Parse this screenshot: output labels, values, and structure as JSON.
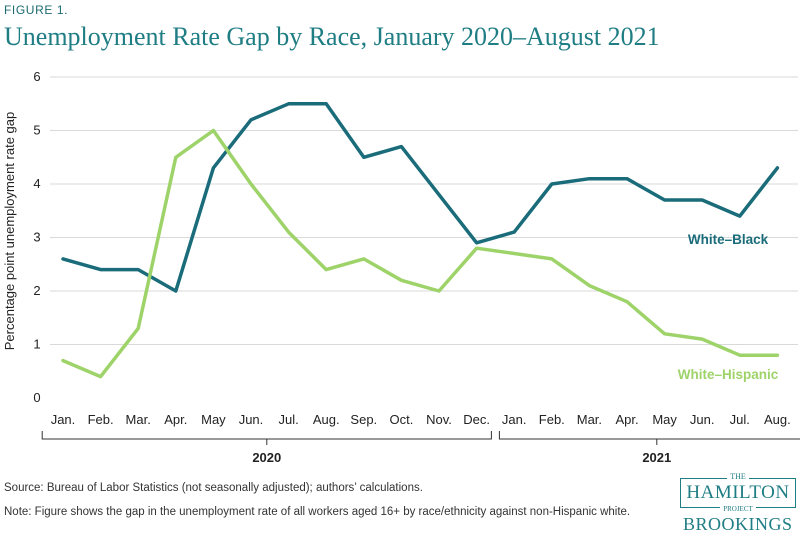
{
  "figure_label": "FIGURE 1.",
  "source_note": "Source: Bureau of Labor Statistics (not seasonally adjusted); authors’ calculations.",
  "definition_note": "Note: Figure shows the gap in the unemployment rate of all workers aged 16+ by race/ethnicity against non-Hispanic white.",
  "logo": {
    "the": "THE",
    "name": "HAMILTON",
    "project": "PROJECT",
    "org": "BROOKINGS"
  },
  "chart_data": {
    "type": "line",
    "title": "Unemployment Rate Gap by Race, January 2020–August 2021",
    "ylabel": "Percentage point unemployment rate gap",
    "ylim": [
      0,
      6
    ],
    "yticks": [
      0,
      1,
      2,
      3,
      4,
      5,
      6
    ],
    "grid": true,
    "categories": [
      "Jan.",
      "Feb.",
      "Mar.",
      "Apr.",
      "May",
      "Jun.",
      "Jul.",
      "Aug.",
      "Sep.",
      "Oct.",
      "Nov.",
      "Dec.",
      "Jan.",
      "Feb.",
      "Mar.",
      "Apr.",
      "May",
      "Jun.",
      "Jul.",
      "Aug."
    ],
    "year_groups": [
      {
        "label": "2020",
        "start": 0,
        "end": 11
      },
      {
        "label": "2021",
        "start": 12,
        "end": 19
      }
    ],
    "series": [
      {
        "name": "White–Black",
        "color": "#1a6c7a",
        "values": [
          2.6,
          2.4,
          2.4,
          2.0,
          4.3,
          5.2,
          5.5,
          5.5,
          4.5,
          4.7,
          3.8,
          2.9,
          3.1,
          4.0,
          4.1,
          4.1,
          3.7,
          3.7,
          3.4,
          4.3
        ]
      },
      {
        "name": "White–Hispanic",
        "color": "#9ed36a",
        "values": [
          0.7,
          0.4,
          1.3,
          4.5,
          5.0,
          4.0,
          3.1,
          2.4,
          2.6,
          2.2,
          2.0,
          2.8,
          2.7,
          2.6,
          2.1,
          1.8,
          1.2,
          1.1,
          0.8,
          0.8
        ]
      }
    ]
  }
}
